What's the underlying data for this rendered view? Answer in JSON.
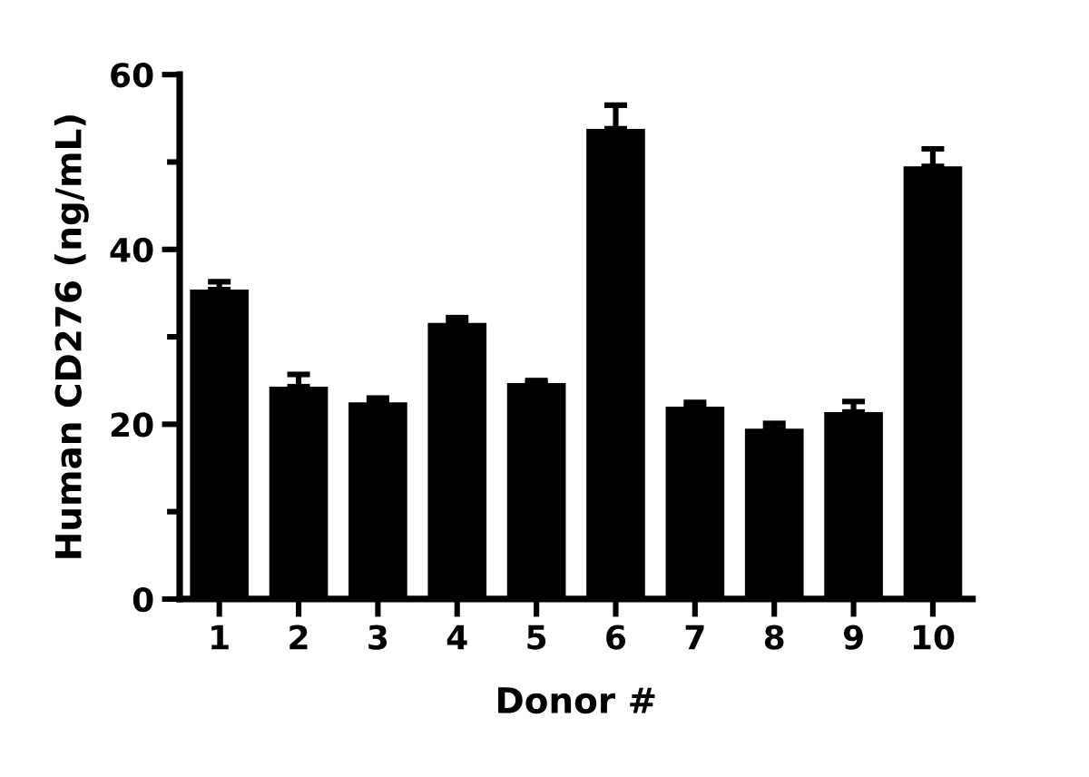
{
  "chart_data": {
    "type": "bar",
    "xlabel": "Donor #",
    "ylabel": "Human CD276 (ng/mL)",
    "categories": [
      "1",
      "2",
      "3",
      "4",
      "5",
      "6",
      "7",
      "8",
      "9",
      "10"
    ],
    "values": [
      35.4,
      24.3,
      22.5,
      31.6,
      24.7,
      53.8,
      22.0,
      19.5,
      21.4,
      49.5
    ],
    "errors": [
      [
        35.4,
        36.3
      ],
      [
        24.3,
        25.7
      ],
      [
        22.5,
        23.0
      ],
      [
        31.6,
        32.2
      ],
      [
        24.7,
        25.0
      ],
      [
        53.8,
        56.5
      ],
      [
        22.0,
        22.5
      ],
      [
        19.5,
        20.1
      ],
      [
        21.4,
        22.6
      ],
      [
        49.5,
        51.5
      ]
    ],
    "color": "#000000",
    "ylim": [
      0,
      60
    ],
    "yticks": [
      0,
      {
        "value": 10,
        "label": null
      },
      20,
      {
        "value": 30,
        "label": null
      },
      40,
      {
        "value": 50,
        "label": null
      },
      60
    ]
  }
}
